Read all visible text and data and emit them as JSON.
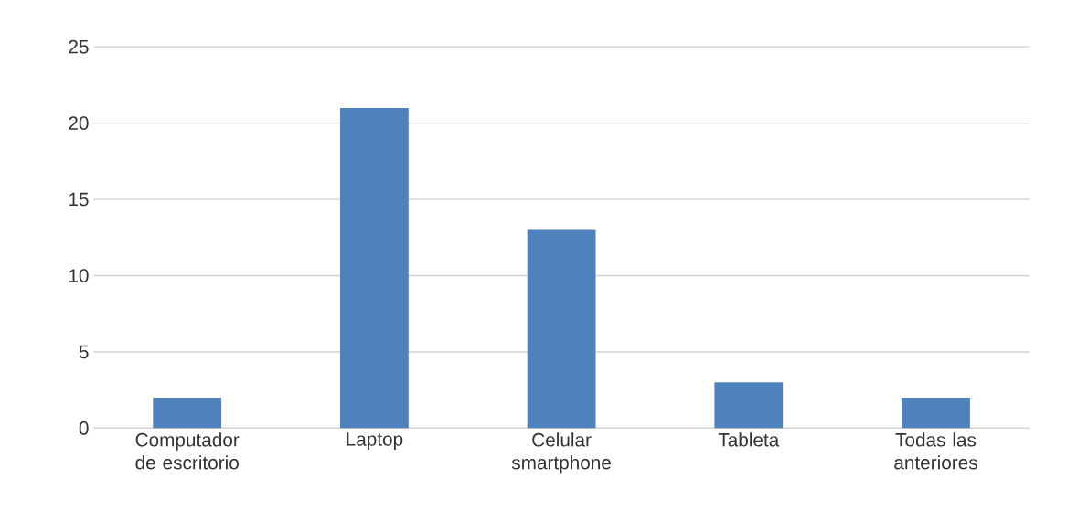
{
  "chart_data": {
    "type": "bar",
    "categories": [
      "Computador de escritorio",
      "Laptop",
      "Celular smartphone",
      "Tableta",
      "Todas las anteriores"
    ],
    "values": [
      2,
      21,
      13,
      3,
      2
    ],
    "color": "#4f81bd",
    "ylim": [
      0,
      25
    ],
    "yticks": [
      0,
      5,
      10,
      15,
      20,
      25
    ],
    "grid": "y"
  }
}
